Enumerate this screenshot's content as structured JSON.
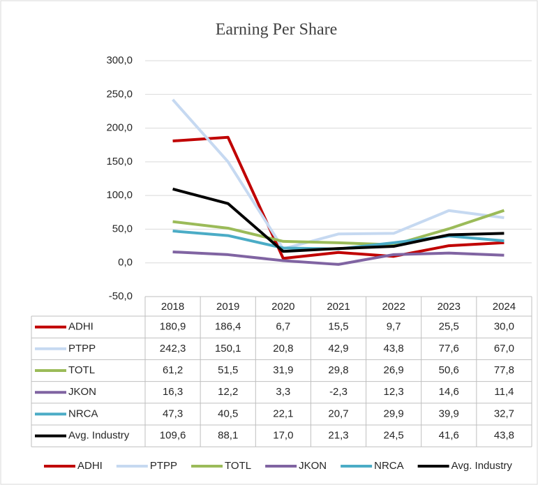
{
  "chart_data": {
    "type": "line",
    "title": "Earning Per Share",
    "categories": [
      "2018",
      "2019",
      "2020",
      "2021",
      "2022",
      "2023",
      "2024"
    ],
    "series": [
      {
        "name": "ADHI",
        "color": "#c00000",
        "values": [
          180.9,
          186.4,
          6.7,
          15.5,
          9.7,
          25.5,
          30.0
        ],
        "value_labels": [
          "180,9",
          "186,4",
          "6,7",
          "15,5",
          "9,7",
          "25,5",
          "30,0"
        ]
      },
      {
        "name": "PTPP",
        "color": "#c6d9f1",
        "values": [
          242.3,
          150.1,
          20.8,
          42.9,
          43.8,
          77.6,
          67.0
        ],
        "value_labels": [
          "242,3",
          "150,1",
          "20,8",
          "42,9",
          "43,8",
          "77,6",
          "67,0"
        ]
      },
      {
        "name": "TOTL",
        "color": "#9bbb59",
        "values": [
          61.2,
          51.5,
          31.9,
          29.8,
          26.9,
          50.6,
          77.8
        ],
        "value_labels": [
          "61,2",
          "51,5",
          "31,9",
          "29,8",
          "26,9",
          "50,6",
          "77,8"
        ]
      },
      {
        "name": "JKON",
        "color": "#8064a2",
        "values": [
          16.3,
          12.2,
          3.3,
          -2.3,
          12.3,
          14.6,
          11.4
        ],
        "value_labels": [
          "16,3",
          "12,2",
          "3,3",
          "-2,3",
          "12,3",
          "14,6",
          "11,4"
        ]
      },
      {
        "name": "NRCA",
        "color": "#4bacc6",
        "values": [
          47.3,
          40.5,
          22.1,
          20.7,
          29.9,
          39.9,
          32.7
        ],
        "value_labels": [
          "47,3",
          "40,5",
          "22,1",
          "20,7",
          "29,9",
          "39,9",
          "32,7"
        ]
      },
      {
        "name": "Avg. Industry",
        "color": "#000000",
        "values": [
          109.6,
          88.1,
          17.0,
          21.3,
          24.5,
          41.6,
          43.8
        ],
        "value_labels": [
          "109,6",
          "88,1",
          "17,0",
          "21,3",
          "24,5",
          "41,6",
          "43,8"
        ]
      }
    ],
    "ylim": [
      -50,
      300
    ],
    "yticks": [
      {
        "value": -50,
        "label": "-50,0"
      },
      {
        "value": 0,
        "label": "0,0"
      },
      {
        "value": 50,
        "label": "50,0"
      },
      {
        "value": 100,
        "label": "100,0"
      },
      {
        "value": 150,
        "label": "150,0"
      },
      {
        "value": 200,
        "label": "200,0"
      },
      {
        "value": 250,
        "label": "250,0"
      },
      {
        "value": 300,
        "label": "300,0"
      }
    ],
    "grid": true,
    "legend": "bottom",
    "data_table": true
  }
}
